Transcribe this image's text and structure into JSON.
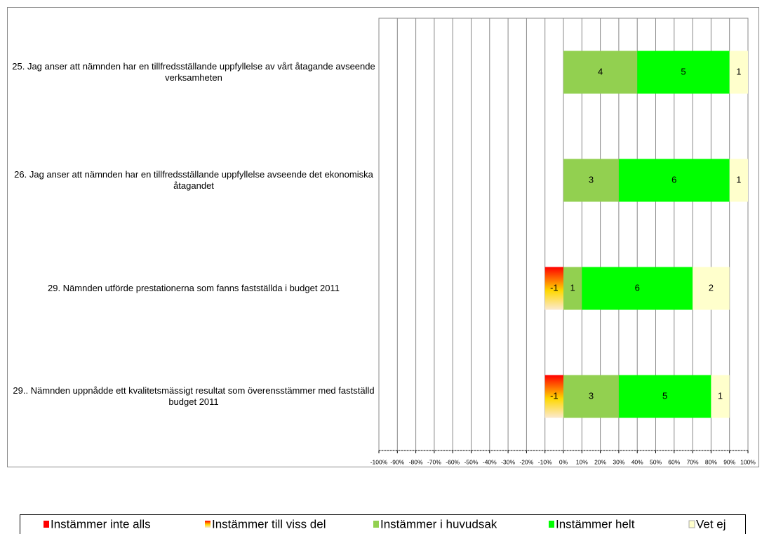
{
  "chart_data": {
    "type": "bar",
    "orientation": "horizontal",
    "stacked": true,
    "categories": [
      "25. Jag anser att nämnden har en tillfredsställande  uppfyllelse av vårt åtagande avseende verksamheten",
      "26. Jag anser att nämnden har en tillfredsställande  uppfyllelse avseende det ekonomiska åtagandet",
      "29. Nämnden utförde prestationerna som fanns fastställda i budget 2011",
      "29.. Nämnden uppnådde ett kvalitetsmässigt resultat som överensstämmer med fastställd budget 2011"
    ],
    "series": [
      {
        "name": "Instämmer inte alls",
        "color": "#ff0000",
        "values": [
          0,
          0,
          0,
          0
        ],
        "value_labels": [
          null,
          null,
          null,
          null
        ]
      },
      {
        "name": "Instämmer till viss del",
        "color": "#ffd700",
        "values": [
          0,
          0,
          -10,
          -10
        ],
        "value_labels": [
          null,
          null,
          "-1",
          "-1"
        ]
      },
      {
        "name": "Instämmer i huvudsak",
        "color": "#92d050",
        "values": [
          40,
          30,
          10,
          30
        ],
        "value_labels": [
          "4",
          "3",
          "1",
          "3"
        ]
      },
      {
        "name": "Instämmer helt",
        "color": "#00ff00",
        "values": [
          50,
          60,
          60,
          50
        ],
        "value_labels": [
          "5",
          "6",
          "6",
          "5"
        ]
      },
      {
        "name": "Vet ej",
        "color": "#ffffcc",
        "values": [
          10,
          10,
          20,
          10
        ],
        "value_labels": [
          "1",
          "1",
          "2",
          "1"
        ]
      }
    ],
    "xlim": [
      -100,
      100
    ],
    "xticks": [
      {
        "value": -100,
        "label": "-100%"
      },
      {
        "value": -90,
        "label": "-90%"
      },
      {
        "value": -80,
        "label": "-80%"
      },
      {
        "value": -70,
        "label": "-70%"
      },
      {
        "value": -60,
        "label": "-60%"
      },
      {
        "value": -50,
        "label": "-50%"
      },
      {
        "value": -40,
        "label": "-40%"
      },
      {
        "value": -30,
        "label": "-30%"
      },
      {
        "value": -20,
        "label": "-20%"
      },
      {
        "value": -10,
        "label": "-10%"
      },
      {
        "value": 0,
        "label": "0%"
      },
      {
        "value": 10,
        "label": "10%"
      },
      {
        "value": 20,
        "label": "20%"
      },
      {
        "value": 30,
        "label": "30%"
      },
      {
        "value": 40,
        "label": "40%"
      },
      {
        "value": 50,
        "label": "50%"
      },
      {
        "value": 60,
        "label": "60%"
      },
      {
        "value": 70,
        "label": "70%"
      },
      {
        "value": 80,
        "label": "80%"
      },
      {
        "value": 90,
        "label": "90%"
      },
      {
        "value": 100,
        "label": "100%"
      }
    ],
    "grid": true,
    "legend": "bottom"
  }
}
